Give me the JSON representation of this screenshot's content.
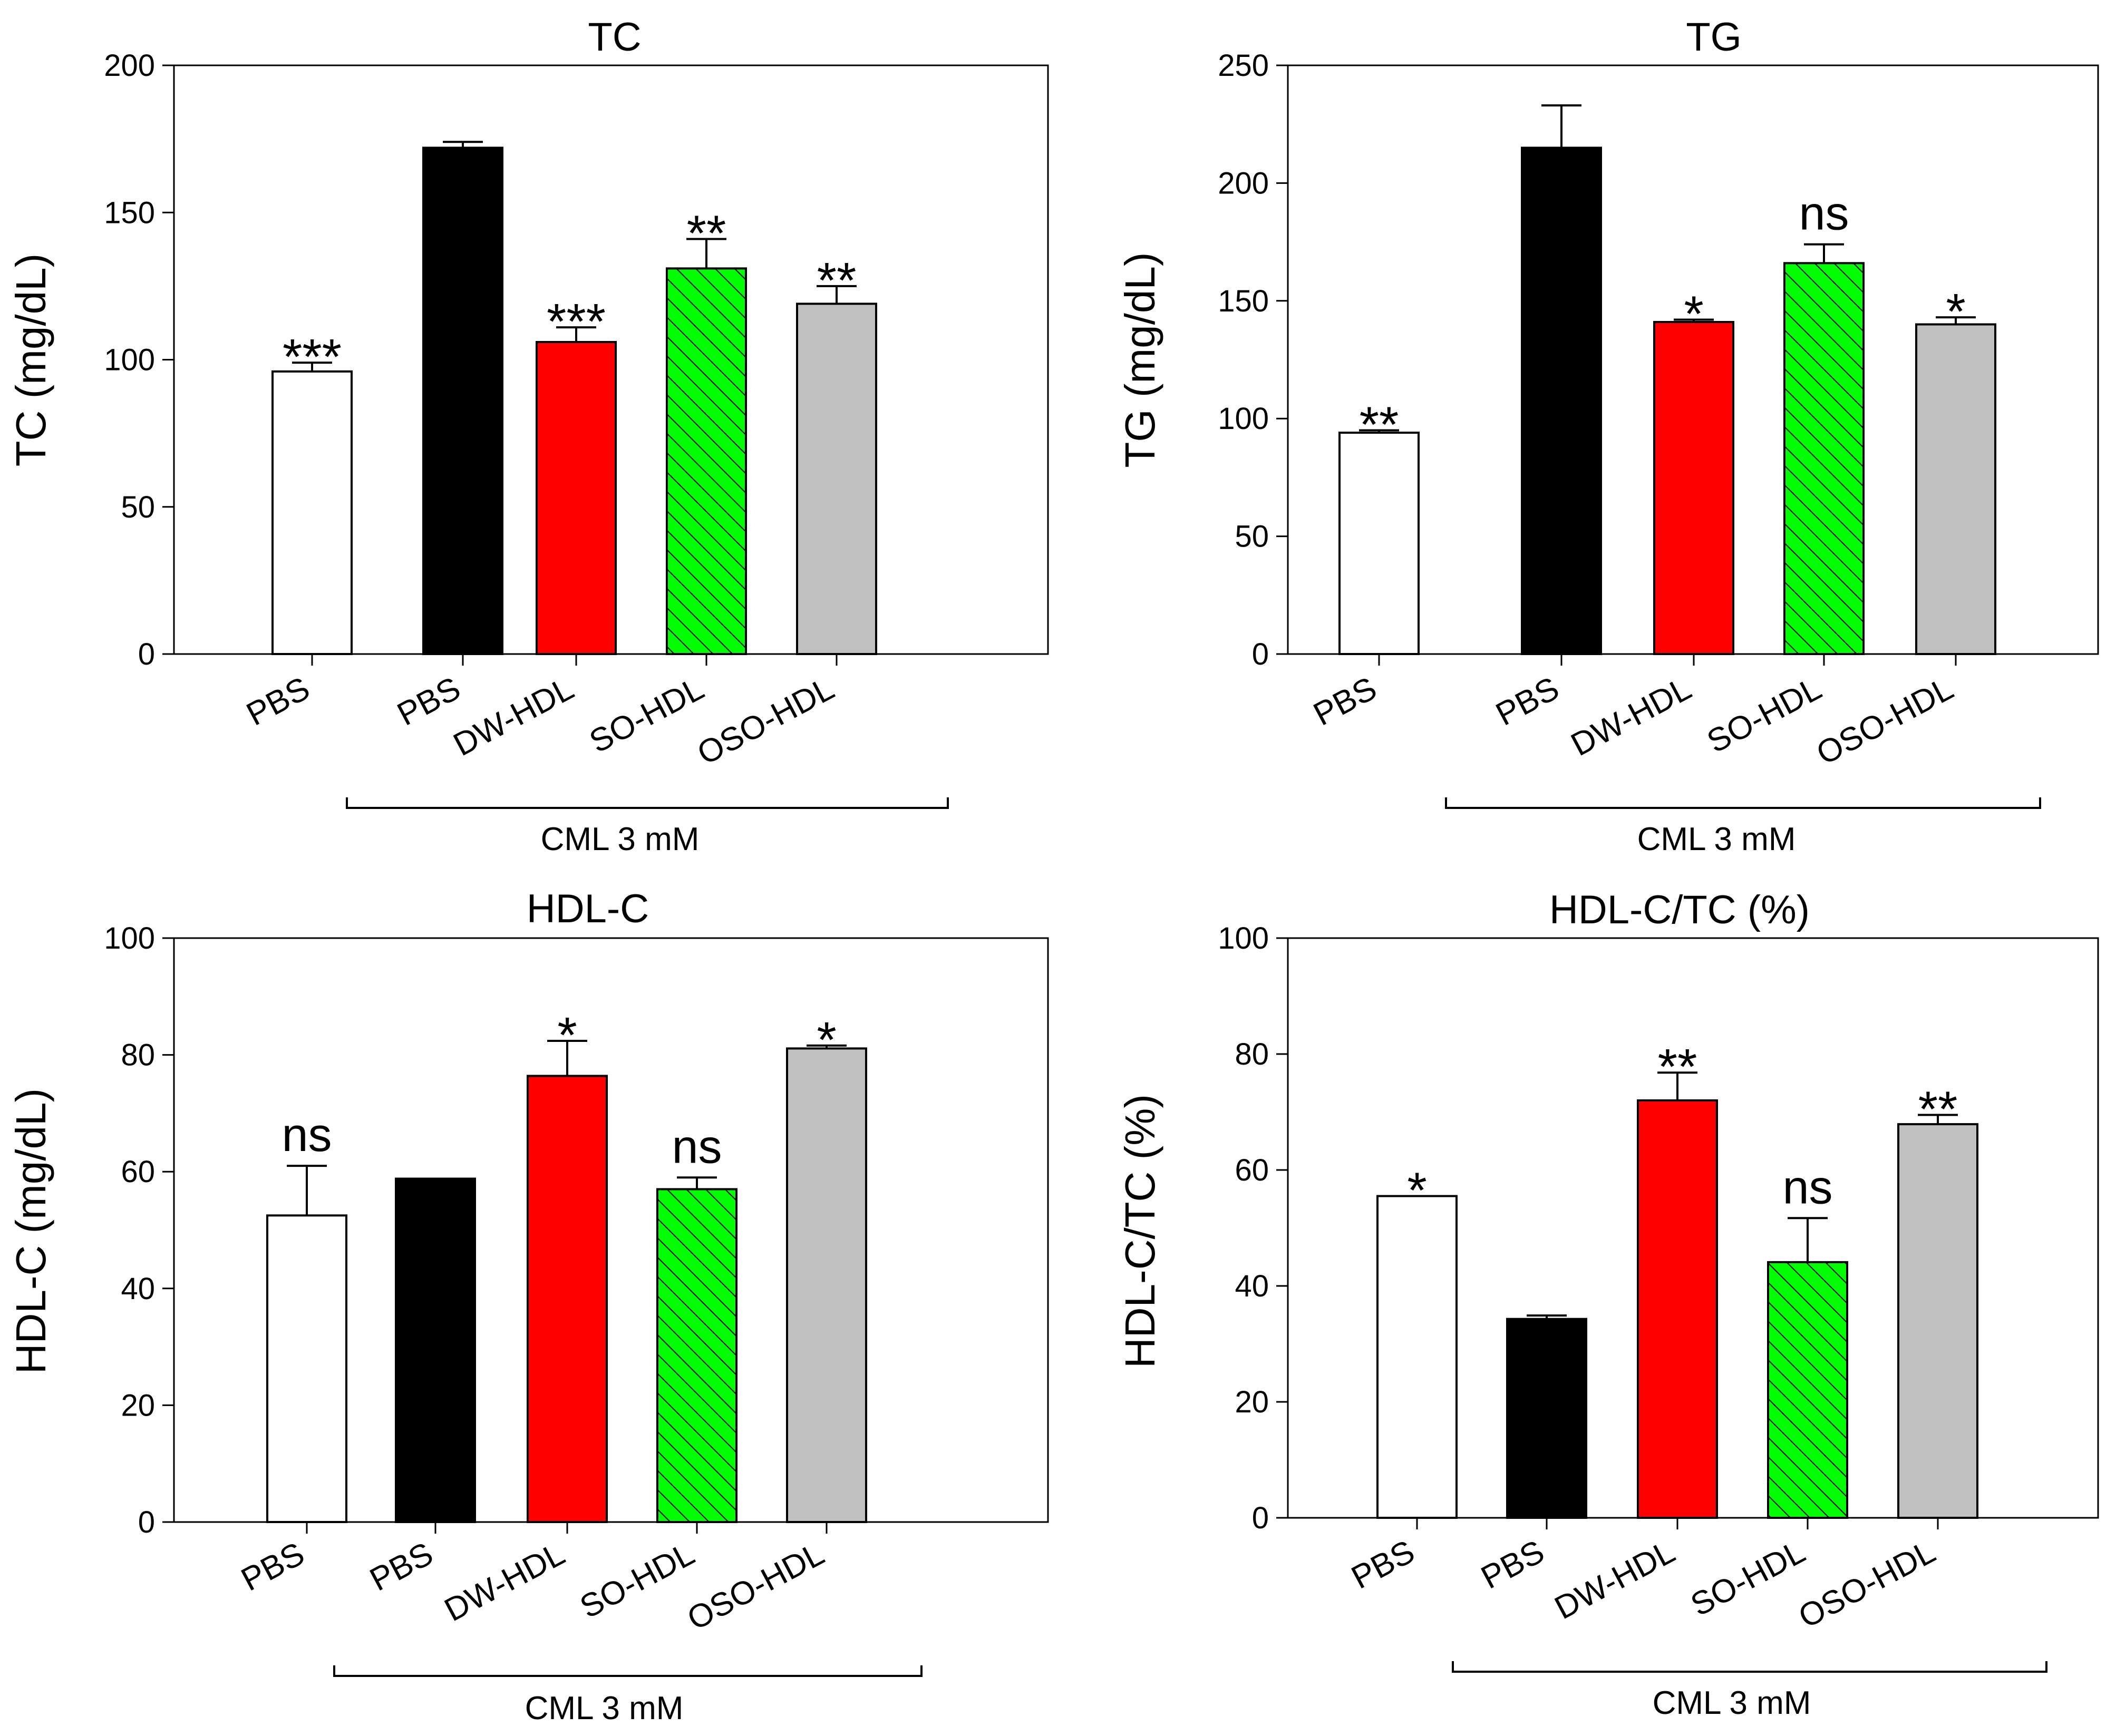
{
  "chart_data": [
    {
      "type": "bar",
      "title": "TC",
      "ylabel": "TC (mg/dL)",
      "xlabel": "",
      "ylim": [
        0,
        200
      ],
      "yticks": [
        0,
        50,
        100,
        150,
        200
      ],
      "categories": [
        "PBS",
        "PBS",
        "DW-HDL",
        "SO-HDL",
        "OSO-HDL"
      ],
      "values": [
        96,
        172,
        106,
        131,
        119
      ],
      "errors": [
        3,
        2,
        5,
        10,
        6
      ],
      "significance": [
        "***",
        "",
        "***",
        "**",
        "**"
      ],
      "bar_colors": [
        "#ffffff",
        "#000000",
        "#ff0000",
        "#00ff00",
        "#c0c0c0"
      ],
      "bar_hatch": [
        false,
        false,
        false,
        true,
        false
      ],
      "group_label": "CML 3 mM",
      "group_start": 1
    },
    {
      "type": "bar",
      "title": "TG",
      "ylabel": "TG (mg/dL)",
      "xlabel": "",
      "ylim": [
        0,
        250
      ],
      "yticks": [
        0,
        50,
        100,
        150,
        200,
        250
      ],
      "categories": [
        "PBS",
        "PBS",
        "DW-HDL",
        "SO-HDL",
        "OSO-HDL"
      ],
      "values": [
        94,
        215,
        141,
        166,
        140
      ],
      "errors": [
        1,
        18,
        1,
        8,
        3
      ],
      "significance": [
        "**",
        "",
        "*",
        "ns",
        "*"
      ],
      "bar_colors": [
        "#ffffff",
        "#000000",
        "#ff0000",
        "#00ff00",
        "#c0c0c0"
      ],
      "bar_hatch": [
        false,
        false,
        false,
        true,
        false
      ],
      "group_label": "CML 3 mM",
      "group_start": 1
    },
    {
      "type": "bar",
      "title": "HDL-C",
      "ylabel": "HDL-C (mg/dL)",
      "xlabel": "",
      "ylim": [
        0,
        100
      ],
      "yticks": [
        0,
        20,
        40,
        60,
        80,
        100
      ],
      "categories": [
        "PBS",
        "PBS",
        "DW-HDL",
        "SO-HDL",
        "OSO-HDL"
      ],
      "values": [
        52.5,
        58.8,
        76.4,
        57,
        81.1
      ],
      "errors": [
        8.5,
        0,
        6,
        2,
        0.5
      ],
      "significance": [
        "ns",
        "",
        "*",
        "ns",
        "*"
      ],
      "bar_colors": [
        "#ffffff",
        "#000000",
        "#ff0000",
        "#00ff00",
        "#c0c0c0"
      ],
      "bar_hatch": [
        false,
        false,
        false,
        true,
        false
      ],
      "group_label": "CML 3 mM",
      "group_start": 1
    },
    {
      "type": "bar",
      "title": "HDL-C/TC (%)",
      "ylabel": "HDL-C/TC (%)",
      "xlabel": "",
      "ylim": [
        0,
        100
      ],
      "yticks": [
        0,
        20,
        40,
        60,
        80,
        100
      ],
      "categories": [
        "PBS",
        "PBS",
        "DW-HDL",
        "SO-HDL",
        "OSO-HDL"
      ],
      "values": [
        55.5,
        34.3,
        72,
        44.1,
        67.9
      ],
      "errors": [
        0,
        0.6,
        4.8,
        7.6,
        1.6
      ],
      "significance": [
        "*",
        "",
        "**",
        "ns",
        "**"
      ],
      "bar_colors": [
        "#ffffff",
        "#000000",
        "#ff0000",
        "#00ff00",
        "#c0c0c0"
      ],
      "bar_hatch": [
        false,
        false,
        false,
        true,
        false
      ],
      "group_label": "CML 3 mM",
      "group_start": 1
    }
  ]
}
